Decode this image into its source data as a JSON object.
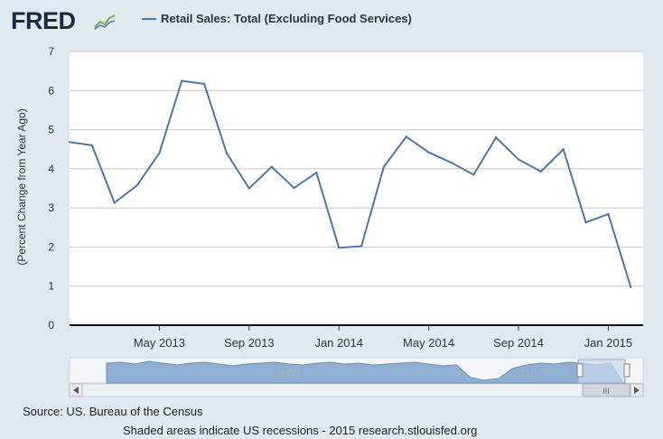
{
  "header": {
    "logo_text": "FRED",
    "legend_label": "Retail Sales: Total (Excluding Food Services)"
  },
  "navigator": {
    "labels": [
      "2000",
      "2010"
    ],
    "scroll_thumb_label": "III"
  },
  "footer": {
    "source": "Source: US. Bureau of the Census",
    "note": "Shaded areas indicate US recessions - 2015 research.stlouisfed.org"
  },
  "colors": {
    "line": "#4f78a7",
    "page_bg": "#e1e9f0",
    "plot_bg": "#ffffff",
    "grid": "#c8c8c8",
    "navigator_fill": "#8fb0d3"
  },
  "chart_data": {
    "type": "line",
    "title": "",
    "xlabel": "",
    "ylabel": "(Percent Change from Year Ago)",
    "ylim": [
      0,
      7
    ],
    "yticks": [
      0,
      1,
      2,
      3,
      4,
      5,
      6,
      7
    ],
    "xticks": [
      "May 2013",
      "Sep 2013",
      "Jan 2014",
      "May 2014",
      "Sep 2014",
      "Jan 2015"
    ],
    "grid": true,
    "legend_position": "top",
    "series": [
      {
        "name": "Retail Sales: Total (Excluding Food Services)",
        "x": [
          "2013-01",
          "2013-02",
          "2013-03",
          "2013-04",
          "2013-05",
          "2013-06",
          "2013-07",
          "2013-08",
          "2013-09",
          "2013-10",
          "2013-11",
          "2013-12",
          "2014-01",
          "2014-02",
          "2014-03",
          "2014-04",
          "2014-05",
          "2014-06",
          "2014-07",
          "2014-08",
          "2014-09",
          "2014-10",
          "2014-11",
          "2014-12",
          "2015-01",
          "2015-02"
        ],
        "values": [
          4.68,
          4.6,
          3.13,
          3.57,
          4.4,
          6.25,
          6.17,
          4.4,
          3.5,
          4.05,
          3.51,
          3.9,
          1.98,
          2.02,
          4.05,
          4.82,
          4.42,
          4.16,
          3.85,
          4.8,
          4.24,
          3.93,
          4.5,
          2.63,
          2.84,
          0.98
        ]
      }
    ]
  }
}
